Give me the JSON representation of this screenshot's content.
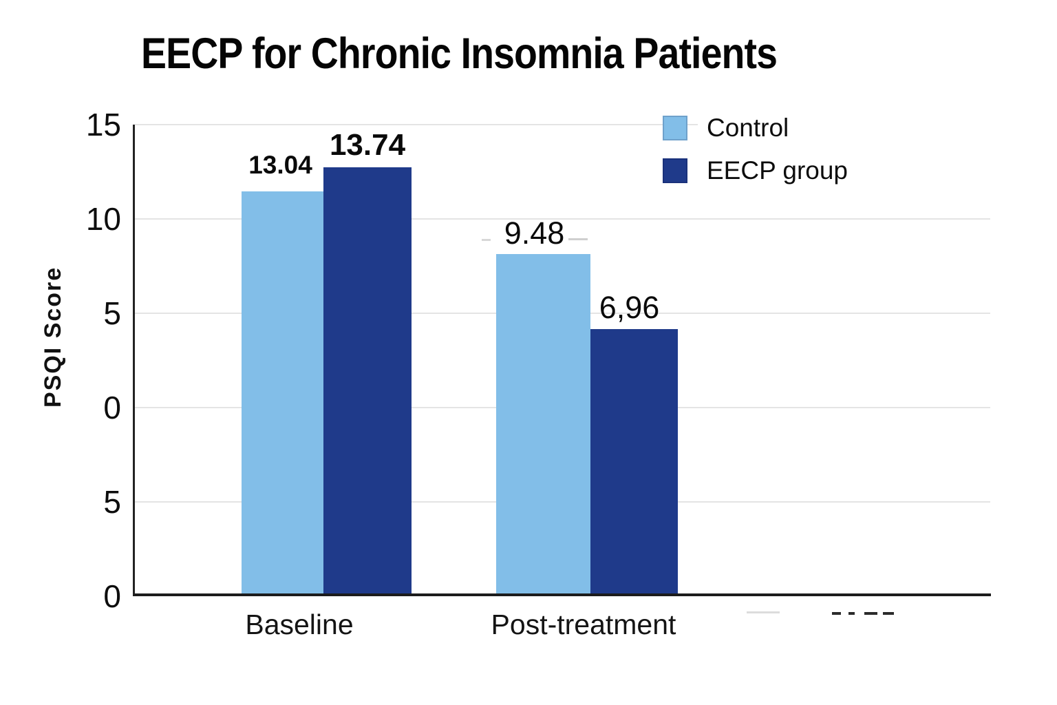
{
  "chart_data": {
    "type": "bar",
    "title": "EECP for Chronic Insomnia Patients",
    "ylabel": "PSQI Score",
    "xlabel": "",
    "categories": [
      "Baseline",
      "Post-treatment"
    ],
    "series": [
      {
        "name": "Control",
        "color": "#82BEE8",
        "values": [
          13.04,
          9.48
        ],
        "value_labels": [
          "13.04",
          "9.48"
        ]
      },
      {
        "name": "EECP group",
        "color": "#1F3A8A",
        "values": [
          13.74,
          6.96
        ],
        "value_labels": [
          "13.74",
          "6,96"
        ]
      }
    ],
    "y_tick_labels_top_to_bottom": [
      "15",
      "10",
      "5",
      "0",
      "5",
      "0"
    ],
    "grid": true,
    "legend_position": "top-right",
    "background_color": "#FFFFFF",
    "axis_color": "#1C1C1C",
    "gridline_color": "#E4E4E4"
  }
}
